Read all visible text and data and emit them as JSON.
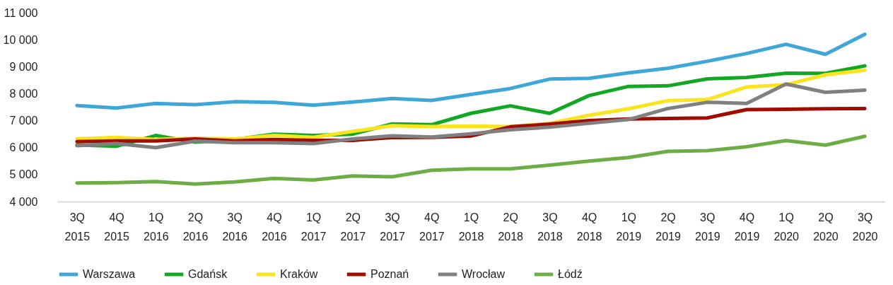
{
  "chart_data": {
    "type": "line",
    "categories": [
      "3Q 2015",
      "4Q 2015",
      "1Q 2016",
      "2Q 2016",
      "3Q 2016",
      "4Q 2016",
      "1Q 2017",
      "2Q 2017",
      "3Q 2017",
      "4Q 2017",
      "1Q 2018",
      "2Q 2018",
      "3Q 2018",
      "4Q 2018",
      "1Q 2019",
      "2Q 2019",
      "3Q 2019",
      "4Q 2019",
      "1Q 2020",
      "2Q 2020",
      "3Q 2020"
    ],
    "series": [
      {
        "name": "Warszawa",
        "color": "#3ea7d8",
        "values": [
          7560,
          7470,
          7640,
          7590,
          7700,
          7680,
          7570,
          7690,
          7820,
          7750,
          7970,
          8190,
          8540,
          8570,
          8770,
          8940,
          9200,
          9490,
          9830,
          9460,
          10200
        ]
      },
      {
        "name": "Gdańsk",
        "color": "#13a823",
        "values": [
          6100,
          6050,
          6450,
          6200,
          6300,
          6500,
          6450,
          6500,
          6880,
          6850,
          7270,
          7550,
          7270,
          7930,
          8270,
          8290,
          8550,
          8600,
          8760,
          8750,
          9030
        ]
      },
      {
        "name": "Kraków",
        "color": "#f9e41f",
        "values": [
          6330,
          6380,
          6300,
          6350,
          6320,
          6450,
          6380,
          6600,
          6810,
          6780,
          6800,
          6780,
          6900,
          7200,
          7440,
          7740,
          7780,
          8250,
          8330,
          8700,
          8870
        ]
      },
      {
        "name": "Poznań",
        "color": "#a00d00",
        "values": [
          6220,
          6250,
          6250,
          6320,
          6250,
          6300,
          6270,
          6270,
          6370,
          6380,
          6430,
          6770,
          6870,
          7000,
          7060,
          7080,
          7100,
          7410,
          7420,
          7440,
          7450
        ]
      },
      {
        "name": "Wrocław",
        "color": "#808080",
        "values": [
          6070,
          6150,
          6000,
          6240,
          6180,
          6180,
          6150,
          6320,
          6440,
          6390,
          6510,
          6660,
          6760,
          6900,
          7040,
          7450,
          7680,
          7640,
          8360,
          8050,
          8130
        ]
      },
      {
        "name": "Łódź",
        "color": "#6cad45",
        "values": [
          4690,
          4700,
          4740,
          4650,
          4730,
          4860,
          4800,
          4950,
          4920,
          5160,
          5210,
          5210,
          5350,
          5500,
          5630,
          5860,
          5890,
          6030,
          6260,
          6090,
          6420
        ]
      }
    ],
    "ylim": [
      4000,
      11000
    ],
    "yticks": [
      {
        "value": 4000,
        "label": "4 000"
      },
      {
        "value": 5000,
        "label": "5 000"
      },
      {
        "value": 6000,
        "label": "6 000"
      },
      {
        "value": 7000,
        "label": "7 000"
      },
      {
        "value": 8000,
        "label": "8 000"
      },
      {
        "value": 9000,
        "label": "9 000"
      },
      {
        "value": 10000,
        "label": "10 000"
      },
      {
        "value": 11000,
        "label": "11 000"
      }
    ],
    "grid": false,
    "legend": "bottom",
    "marker": "none",
    "line_style": "solid"
  }
}
